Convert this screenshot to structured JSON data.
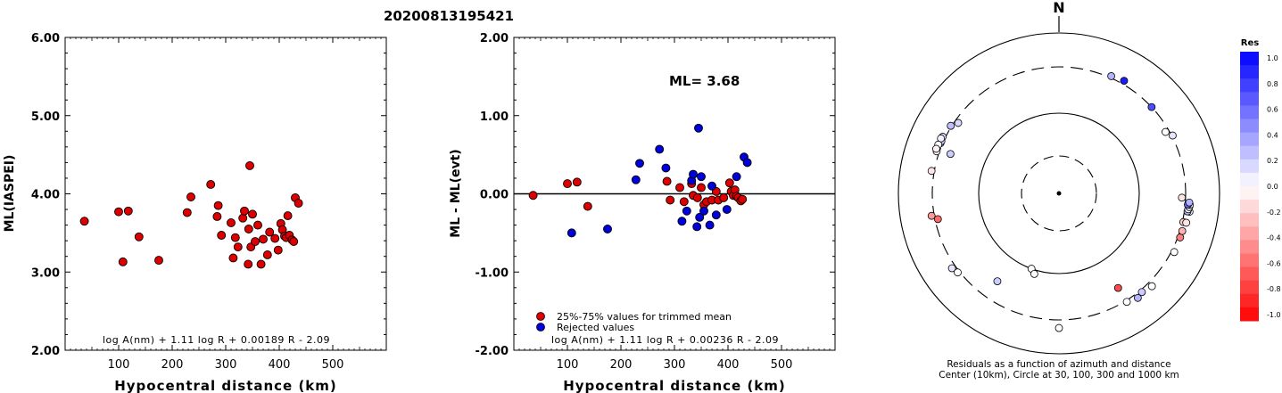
{
  "title": "20200813195421",
  "chart_data": [
    {
      "type": "scatter",
      "name": "ml-vs-distance",
      "xlabel": "Hypocentral distance (km)",
      "ylabel": "ML(IASPEI)",
      "xlim": [
        0,
        600
      ],
      "ylim": [
        2.0,
        6.0
      ],
      "xticks": [
        "100",
        "200",
        "300",
        "400",
        "500"
      ],
      "yticks": [
        "2.00",
        "3.00",
        "4.00",
        "5.00",
        "6.00"
      ],
      "formula": "log A(nm) + 1.11 log R + 0.00189 R - 2.09",
      "points": [
        [
          36,
          3.65
        ],
        [
          100,
          3.77
        ],
        [
          108,
          3.13
        ],
        [
          118,
          3.78
        ],
        [
          138,
          3.45
        ],
        [
          175,
          3.15
        ],
        [
          228,
          3.76
        ],
        [
          235,
          3.96
        ],
        [
          272,
          4.12
        ],
        [
          284,
          3.71
        ],
        [
          286,
          3.85
        ],
        [
          292,
          3.47
        ],
        [
          310,
          3.63
        ],
        [
          314,
          3.18
        ],
        [
          318,
          3.44
        ],
        [
          323,
          3.32
        ],
        [
          332,
          3.69
        ],
        [
          335,
          3.78
        ],
        [
          342,
          3.1
        ],
        [
          343,
          3.55
        ],
        [
          345,
          4.36
        ],
        [
          347,
          3.32
        ],
        [
          350,
          3.74
        ],
        [
          355,
          3.39
        ],
        [
          360,
          3.6
        ],
        [
          366,
          3.1
        ],
        [
          370,
          3.42
        ],
        [
          378,
          3.22
        ],
        [
          382,
          3.51
        ],
        [
          392,
          3.43
        ],
        [
          398,
          3.28
        ],
        [
          403,
          3.62
        ],
        [
          406,
          3.54
        ],
        [
          410,
          3.46
        ],
        [
          413,
          3.44
        ],
        [
          416,
          3.72
        ],
        [
          419,
          3.47
        ],
        [
          424,
          3.41
        ],
        [
          427,
          3.39
        ],
        [
          430,
          3.95
        ],
        [
          436,
          3.88
        ]
      ]
    },
    {
      "type": "scatter",
      "name": "residual-vs-distance",
      "xlabel": "Hypocentral distance (km)",
      "ylabel": "ML - ML(evt)",
      "xlim": [
        0,
        600
      ],
      "ylim": [
        -2.0,
        2.0
      ],
      "xticks": [
        "100",
        "200",
        "300",
        "400",
        "500"
      ],
      "yticks": [
        "-2.00",
        "-1.00",
        "0.00",
        "1.00",
        "2.00"
      ],
      "annotation": "ML=  3.68",
      "formula": "log A(nm) + 1.11 log R + 0.00236 R - 2.09",
      "series": [
        {
          "name": "25%-75% values for trimmed mean",
          "color": "#dd0000",
          "points": [
            [
              36,
              -0.02
            ],
            [
              100,
              0.13
            ],
            [
              118,
              0.15
            ],
            [
              138,
              -0.16
            ],
            [
              286,
              0.16
            ],
            [
              292,
              -0.08
            ],
            [
              310,
              0.08
            ],
            [
              318,
              -0.1
            ],
            [
              332,
              0.13
            ],
            [
              335,
              -0.02
            ],
            [
              343,
              -0.05
            ],
            [
              350,
              0.08
            ],
            [
              355,
              -0.14
            ],
            [
              360,
              -0.1
            ],
            [
              370,
              -0.08
            ],
            [
              378,
              0.03
            ],
            [
              382,
              -0.08
            ],
            [
              392,
              -0.05
            ],
            [
              403,
              0.14
            ],
            [
              406,
              0.03
            ],
            [
              410,
              -0.02
            ],
            [
              413,
              0.05
            ],
            [
              416,
              -0.03
            ],
            [
              419,
              -0.05
            ],
            [
              424,
              -0.09
            ],
            [
              427,
              -0.07
            ]
          ]
        },
        {
          "name": "Rejected values",
          "color": "#0000dd",
          "points": [
            [
              108,
              -0.5
            ],
            [
              175,
              -0.45
            ],
            [
              228,
              0.18
            ],
            [
              235,
              0.39
            ],
            [
              272,
              0.57
            ],
            [
              284,
              0.33
            ],
            [
              314,
              -0.35
            ],
            [
              323,
              -0.22
            ],
            [
              332,
              0.17
            ],
            [
              335,
              0.25
            ],
            [
              342,
              -0.42
            ],
            [
              345,
              0.84
            ],
            [
              347,
              -0.3
            ],
            [
              350,
              0.22
            ],
            [
              355,
              -0.22
            ],
            [
              366,
              -0.4
            ],
            [
              370,
              0.1
            ],
            [
              378,
              -0.27
            ],
            [
              398,
              -0.2
            ],
            [
              416,
              0.22
            ],
            [
              430,
              0.47
            ],
            [
              436,
              0.4
            ]
          ]
        }
      ]
    },
    {
      "type": "scatter",
      "name": "polar-residuals",
      "north_label": "N",
      "caption_line1": "Residuals as a function of azimuth and distance",
      "caption_line2": "Center (10km), Circle at 30, 100, 300 and 1000 km",
      "colorbar_title": "Res",
      "colorbar_ticks": [
        "1.0",
        "0.8",
        "0.6",
        "0.4",
        "0.2",
        "0.0",
        "-0.2",
        "-0.4",
        "-0.6",
        "-0.8",
        "-1.0"
      ],
      "rings_km": [
        10,
        30,
        100,
        300,
        1000
      ],
      "stations": [
        {
          "az": 280,
          "km": 330,
          "res": -0.1
        },
        {
          "az": 289,
          "km": 330,
          "res": -0.02
        },
        {
          "az": 293,
          "km": 322,
          "res": 0.3
        },
        {
          "az": 294,
          "km": 322,
          "res": 0.2
        },
        {
          "az": 296,
          "km": 330,
          "res": 0.15
        },
        {
          "az": 295,
          "km": 340,
          "res": 0.05
        },
        {
          "az": 292,
          "km": 340,
          "res": 0.0
        },
        {
          "az": 290,
          "km": 345,
          "res": -0.05
        },
        {
          "az": 302,
          "km": 310,
          "res": 0.25
        },
        {
          "az": 305,
          "km": 275,
          "res": 0.15
        },
        {
          "az": 290,
          "km": 230,
          "res": 0.2
        },
        {
          "az": 260,
          "km": 330,
          "res": -0.4
        },
        {
          "az": 258,
          "km": 280,
          "res": -0.6
        },
        {
          "az": 235,
          "km": 345,
          "res": 0.1
        },
        {
          "az": 232,
          "km": 320,
          "res": 0.0
        },
        {
          "az": 200,
          "km": 100,
          "res": 0.0
        },
        {
          "az": 197,
          "km": 110,
          "res": 0.0
        },
        {
          "az": 215,
          "km": 190,
          "res": 0.2
        },
        {
          "az": 180,
          "km": 400,
          "res": 0.0
        },
        {
          "az": 148,
          "km": 210,
          "res": -0.7
        },
        {
          "az": 148,
          "km": 315,
          "res": 0.0
        },
        {
          "az": 143,
          "km": 350,
          "res": 0.3
        },
        {
          "az": 140,
          "km": 325,
          "res": 0.2
        },
        {
          "az": 135,
          "km": 355,
          "res": 0.0
        },
        {
          "az": 117,
          "km": 330,
          "res": 0.0
        },
        {
          "az": 110,
          "km": 325,
          "res": -0.5
        },
        {
          "az": 107,
          "km": 325,
          "res": -0.3
        },
        {
          "az": 103,
          "km": 310,
          "res": -0.2
        },
        {
          "az": 103,
          "km": 345,
          "res": -0.1
        },
        {
          "az": 98,
          "km": 360,
          "res": 0.0
        },
        {
          "az": 98,
          "km": 335,
          "res": 0.3
        },
        {
          "az": 97,
          "km": 340,
          "res": 0.0
        },
        {
          "az": 96,
          "km": 350,
          "res": 0.05
        },
        {
          "az": 95,
          "km": 355,
          "res": 0.05
        },
        {
          "az": 95,
          "km": 330,
          "res": 0.6
        },
        {
          "az": 94,
          "km": 345,
          "res": 0.3
        },
        {
          "az": 92,
          "km": 275,
          "res": -0.1
        },
        {
          "az": 63,
          "km": 310,
          "res": 0.1
        },
        {
          "az": 60,
          "km": 275,
          "res": 0.0
        },
        {
          "az": 47,
          "km": 300,
          "res": 0.7
        },
        {
          "az": 30,
          "km": 340,
          "res": 0.9
        },
        {
          "az": 24,
          "km": 320,
          "res": 0.3
        }
      ]
    }
  ]
}
